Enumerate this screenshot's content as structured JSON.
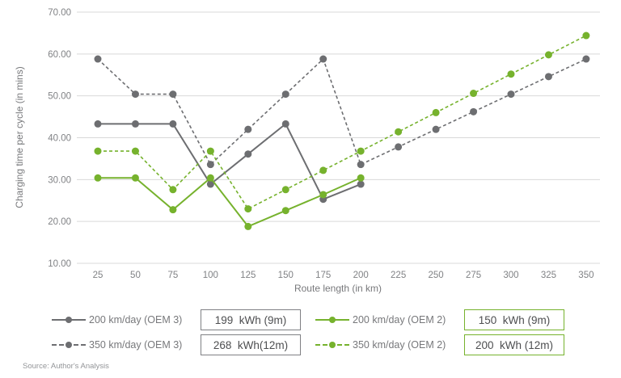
{
  "chart_data": {
    "type": "line",
    "title": "",
    "xlabel": "Route length (in km)",
    "ylabel": "Charging time per cycle (in mins)",
    "x": [
      25,
      50,
      75,
      100,
      125,
      150,
      175,
      200,
      225,
      250,
      275,
      300,
      325,
      350
    ],
    "ylim": [
      10,
      70
    ],
    "yticks": [
      70,
      60,
      50,
      40,
      30,
      20,
      10
    ],
    "ytick_labels": [
      "70.00",
      "60.00",
      "50.00",
      "40.00",
      "30.00",
      "20.00",
      "10.00"
    ],
    "grid": "horizontal only",
    "legend_position": "bottom, two columns with kWh value boxes",
    "series": [
      {
        "name": "200 km/day (OEM 3)",
        "badge": "199  kWh (9m)",
        "color": "#6d6e71",
        "style": "solid",
        "values": [
          43.3,
          43.3,
          43.3,
          28.9,
          36.1,
          43.3,
          25.3,
          28.9
        ]
      },
      {
        "name": "350 km/day (OEM 3)",
        "badge": "268  kWh(12m)",
        "color": "#6d6e71",
        "style": "dashed",
        "values": [
          58.8,
          50.4,
          50.4,
          33.6,
          42.0,
          50.4,
          58.8,
          33.6,
          37.8,
          42.0,
          46.2,
          50.4,
          54.6,
          58.8
        ]
      },
      {
        "name": "200 km/day (OEM 2)",
        "badge": "150  kWh (9m)",
        "color": "#76b22d",
        "style": "solid",
        "values": [
          30.4,
          30.4,
          22.8,
          30.4,
          18.8,
          22.6,
          26.4,
          30.4
        ]
      },
      {
        "name": "350 km/day (OEM 2)",
        "badge": "200  kWh (12m)",
        "color": "#76b22d",
        "style": "dashed",
        "values": [
          36.8,
          36.8,
          27.6,
          36.8,
          23.0,
          27.6,
          32.2,
          36.8,
          41.4,
          46.0,
          50.6,
          55.2,
          59.8,
          64.4
        ]
      }
    ],
    "source": "Source: Author's Analysis"
  },
  "colors": {
    "green": "#76b22d",
    "gray": "#6d6e71",
    "gridline": "#d9d9d9",
    "tick_text": "#808285",
    "box_border_gray": "#7f8084"
  }
}
